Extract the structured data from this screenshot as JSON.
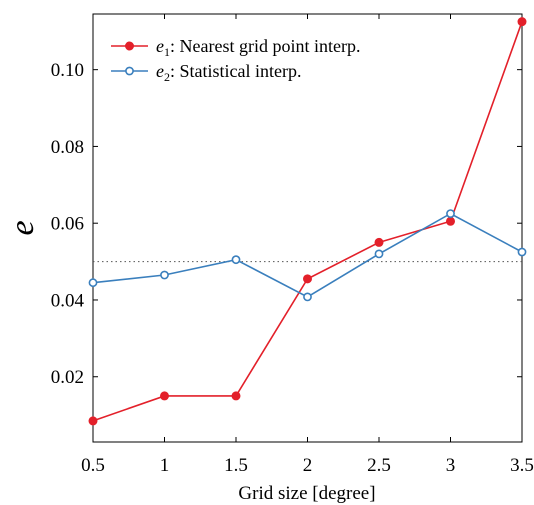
{
  "chart_data": {
    "type": "line",
    "x": [
      0.5,
      1,
      1.5,
      2,
      2.5,
      3,
      3.5
    ],
    "xticks": [
      "0.5",
      "1",
      "1.5",
      "2",
      "2.5",
      "3",
      "3.5"
    ],
    "yticks": [
      "0.02",
      "0.04",
      "0.06",
      "0.08",
      "0.10"
    ],
    "ytick_values": [
      0.02,
      0.04,
      0.06,
      0.08,
      0.1
    ],
    "xlim": [
      0.5,
      3.5
    ],
    "ylim": [
      0.003,
      0.1145
    ],
    "xlabel": "Grid size [degree]",
    "ylabel": "e",
    "grid": false,
    "legend_position": "top-left",
    "reference_line": {
      "y": 0.05,
      "style": "dotted"
    },
    "series": [
      {
        "name": "e1: Nearest grid point interp.",
        "symbol": "e",
        "subscript": "1",
        "description": ": Nearest grid point interp.",
        "color": "#e3202a",
        "marker": "filled-circle",
        "values": [
          0.0085,
          0.015,
          0.015,
          0.0455,
          0.055,
          0.0605,
          0.1125
        ]
      },
      {
        "name": "e2: Statistical interp.",
        "symbol": "e",
        "subscript": "2",
        "description": ": Statistical interp.",
        "color": "#3a7fbd",
        "marker": "open-circle",
        "values": [
          0.0445,
          0.0465,
          0.0505,
          0.0408,
          0.052,
          0.0625,
          0.0525
        ]
      }
    ]
  }
}
